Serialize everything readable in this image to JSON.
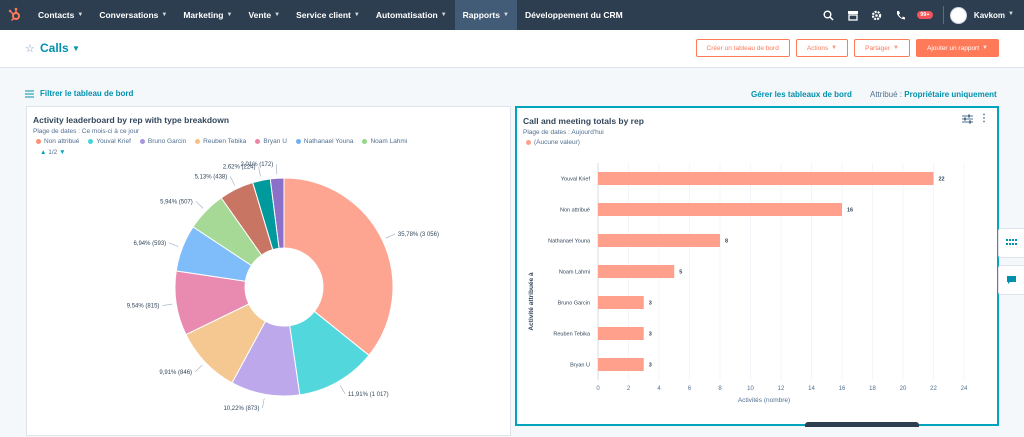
{
  "nav": {
    "items": [
      {
        "label": "Contacts",
        "caret": true
      },
      {
        "label": "Conversations",
        "caret": true
      },
      {
        "label": "Marketing",
        "caret": true
      },
      {
        "label": "Vente",
        "caret": true
      },
      {
        "label": "Service client",
        "caret": true
      },
      {
        "label": "Automatisation",
        "caret": true
      },
      {
        "label": "Rapports",
        "caret": true,
        "active": true
      },
      {
        "label": "Développement du CRM",
        "caret": false
      }
    ],
    "notif_badge": "99+",
    "account": "Kavkom"
  },
  "header": {
    "title": "Calls",
    "btn_create": "Créer un tableau de bord",
    "btn_actions": "Actions",
    "btn_share": "Partager",
    "btn_add": "Ajouter un rapport"
  },
  "filterbar": {
    "filter": "Filtrer le tableau de bord",
    "manage": "Gérer les tableaux de bord",
    "attr_label": "Attribué :",
    "attr_value": "Propriétaire uniquement"
  },
  "card1": {
    "title": "Activity leaderboard by rep with type breakdown",
    "range": "Plage de dates : Ce mois-ci à ce jour",
    "pager": "1/2",
    "legend": [
      {
        "name": "Non attribué",
        "color": "#ff8f76"
      },
      {
        "name": "Youval Krief",
        "color": "#45d3d8"
      },
      {
        "name": "Bruno Garcin",
        "color": "#a796e0"
      },
      {
        "name": "Reuben Tebika",
        "color": "#f5c185"
      },
      {
        "name": "Bryan U",
        "color": "#ec84a6"
      },
      {
        "name": "Nathanael Youna",
        "color": "#6fb0f5"
      },
      {
        "name": "Noam Lahmi",
        "color": "#92d68a"
      }
    ]
  },
  "card2": {
    "title": "Call and meeting totals by rep",
    "range": "Plage de dates : Aujourd'hui",
    "legend": "(Aucune valeur)",
    "legend_color": "#ffa08c"
  },
  "chart_data": [
    {
      "type": "pie",
      "title": "Activity leaderboard by rep with type breakdown",
      "slices": [
        {
          "label": "35,78% (3 056)",
          "value": 35.78,
          "color": "#fea591"
        },
        {
          "label": "11,91% (1 017)",
          "value": 11.91,
          "color": "#51d7dc"
        },
        {
          "label": "10,22% (873)",
          "value": 10.22,
          "color": "#bca8ea"
        },
        {
          "label": "9,91% (846)",
          "value": 9.91,
          "color": "#f5c791"
        },
        {
          "label": "9,54% (815)",
          "value": 9.54,
          "color": "#e98bb0"
        },
        {
          "label": "6,94% (593)",
          "value": 6.94,
          "color": "#7fbdfa"
        },
        {
          "label": "5,94% (507)",
          "value": 5.94,
          "color": "#a6d996"
        },
        {
          "label": "5,13% (438)",
          "value": 5.13,
          "color": "#c97563"
        },
        {
          "label": "2,62% (224)",
          "value": 2.62,
          "color": "#00999c"
        },
        {
          "label": "2,01% (172)",
          "value": 2.01,
          "color": "#8a70c8"
        }
      ]
    },
    {
      "type": "bar",
      "title": "Call and meeting totals by rep",
      "xlabel": "Activités (nombre)",
      "ylabel": "Activité attribuée à",
      "categories": [
        "Youval Krief",
        "Non attribué",
        "Nathanael Youna",
        "Noam Lahmi",
        "Bruno Garcin",
        "Reuben Tebika",
        "Bryan U"
      ],
      "values": [
        22,
        16,
        8,
        5,
        3,
        3,
        3
      ],
      "xlim": [
        0,
        24
      ],
      "xticks": [
        0,
        2,
        4,
        6,
        8,
        10,
        12,
        14,
        16,
        18,
        20,
        22,
        24
      ],
      "color": "#ffa08c"
    }
  ]
}
